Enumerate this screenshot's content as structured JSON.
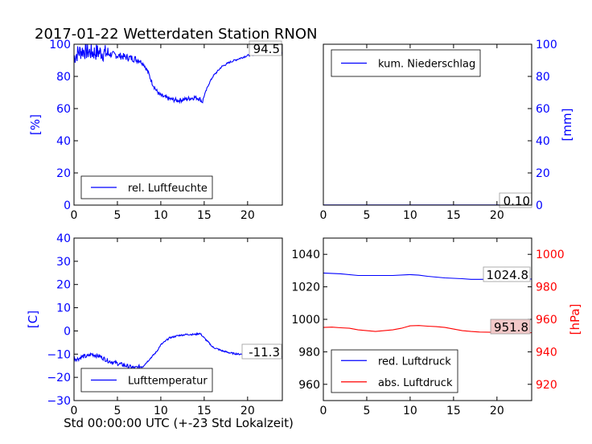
{
  "title": "2017-01-22 Wetterdaten Station RNON",
  "xlabel": "Std 00:00:00 UTC (+-23 Std Lokalzeit)",
  "colors": {
    "blue": "#0000ff",
    "red": "#ff0000",
    "last_bg_red": "#f2c8c8"
  },
  "chart_data": [
    {
      "id": "humidity",
      "type": "line",
      "ylabel_left": "[%]",
      "xlim": [
        0,
        24
      ],
      "ylim": [
        0,
        100
      ],
      "xticks": [
        "0",
        "5",
        "10",
        "15",
        "20"
      ],
      "yticks_left": [
        "0",
        "20",
        "40",
        "60",
        "80",
        "100"
      ],
      "legend": "rel. Luftfeuchte",
      "legend_position": "lower-left",
      "last_value": "94.5",
      "series": [
        {
          "name": "rel. Luftfeuchte",
          "color": "#0000ff",
          "noisy": true,
          "x": [
            0,
            0.5,
            1,
            2,
            3,
            4,
            5,
            6,
            7,
            7.5,
            8,
            8.5,
            9,
            9.5,
            10,
            10.5,
            11,
            12,
            13,
            14,
            14.5,
            14.8,
            15,
            15.5,
            16,
            17,
            18,
            19,
            20,
            21,
            22,
            23,
            24
          ],
          "y": [
            92,
            95,
            96,
            95,
            95,
            94,
            93,
            92,
            91,
            90,
            88,
            83,
            76,
            71,
            68,
            67,
            66,
            65,
            66,
            67,
            66,
            64,
            68,
            75,
            80,
            86,
            89,
            91,
            93,
            94,
            94,
            94.5,
            94.5
          ]
        }
      ]
    },
    {
      "id": "precipitation",
      "type": "line",
      "ylabel_right": "[mm]",
      "xlim": [
        0,
        24
      ],
      "ylim": [
        0,
        100
      ],
      "xticks": [
        "0",
        "5",
        "10",
        "15",
        "20"
      ],
      "yticks_right": [
        "0",
        "20",
        "40",
        "60",
        "80",
        "100"
      ],
      "legend": "kum. Niederschlag",
      "legend_position": "upper-left",
      "last_value": "0.10",
      "series": [
        {
          "name": "kum. Niederschlag",
          "color": "#0000ff",
          "x": [
            0,
            24
          ],
          "y": [
            0.1,
            0.1
          ]
        }
      ]
    },
    {
      "id": "temperature",
      "type": "line",
      "ylabel_left": "[C]",
      "xlim": [
        0,
        24
      ],
      "ylim": [
        -30,
        40
      ],
      "xticks": [
        "0",
        "5",
        "10",
        "15",
        "20"
      ],
      "yticks_left": [
        "−30",
        "−20",
        "−10",
        "0",
        "10",
        "20",
        "30",
        "40"
      ],
      "legend": "Lufttemperatur",
      "legend_position": "lower-left",
      "last_value": "-11.3",
      "series": [
        {
          "name": "Lufttemperatur",
          "color": "#0000ff",
          "noisy": true,
          "x": [
            0,
            0.5,
            1,
            1.5,
            2,
            3,
            4,
            5,
            6,
            7,
            7.5,
            8,
            8.5,
            9,
            9.5,
            10,
            10.5,
            11,
            12,
            13,
            14,
            14.5,
            15,
            15.5,
            16,
            17,
            18,
            19,
            20,
            21,
            22,
            23,
            24
          ],
          "y": [
            -12,
            -12,
            -11,
            -11,
            -10,
            -11,
            -13,
            -14,
            -15,
            -16,
            -15.5,
            -15,
            -13,
            -11,
            -9,
            -6,
            -4.5,
            -3,
            -2,
            -1.5,
            -1.5,
            -1,
            -3,
            -5,
            -7,
            -8.5,
            -9.5,
            -10,
            -10,
            -10.5,
            -11,
            -11.3,
            -11.3
          ]
        }
      ]
    },
    {
      "id": "pressure",
      "type": "line",
      "xlim": [
        0,
        24
      ],
      "ylim_left": [
        950,
        1050
      ],
      "ylim_right": [
        910,
        1010
      ],
      "ylabel_right": "[hPa]",
      "xticks": [
        "0",
        "5",
        "10",
        "15",
        "20"
      ],
      "yticks_left": [
        "960",
        "980",
        "1000",
        "1020",
        "1040"
      ],
      "yticks_right": [
        "920",
        "940",
        "960",
        "980",
        "1000"
      ],
      "legend_position": "lower-left",
      "last_value_left": "1024.8",
      "last_value_right": "951.8",
      "series": [
        {
          "name": "red. Luftdruck",
          "color": "#0000ff",
          "axis": "left",
          "x": [
            0,
            2,
            4,
            6,
            8,
            10,
            11,
            12,
            14,
            16,
            17,
            18,
            20,
            22,
            24
          ],
          "y": [
            1028.5,
            1028,
            1027,
            1027,
            1027,
            1027.5,
            1027.2,
            1026.5,
            1025.5,
            1025,
            1024.6,
            1024.6,
            1024.7,
            1024.8,
            1024.8
          ]
        },
        {
          "name": "abs. Luftdruck",
          "color": "#ff0000",
          "axis": "right",
          "x": [
            0,
            1,
            2,
            3,
            4,
            5,
            6,
            7,
            8,
            9,
            10,
            11,
            12,
            13,
            14,
            15,
            16,
            17,
            18,
            20,
            22,
            24
          ],
          "y": [
            955,
            955.2,
            954.8,
            954.5,
            953.5,
            953,
            952.5,
            953,
            953.5,
            954.5,
            956,
            956.2,
            955.8,
            955.5,
            955,
            954,
            953,
            952.5,
            952.2,
            952,
            951.8,
            951.8
          ]
        }
      ]
    }
  ]
}
